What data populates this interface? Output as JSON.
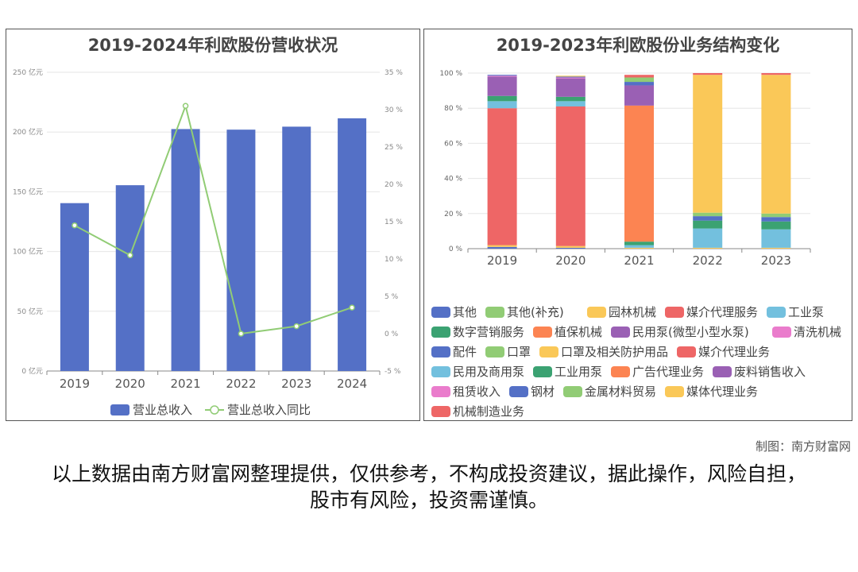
{
  "footer": {
    "source": "制图：南方财富网",
    "disclaimer": "以上数据由南方财富网整理提供，仅供参考，不构成投资建议，据此操作，风险自担，股市有风险，投资需谨慎。"
  },
  "chart_data": [
    {
      "type": "bar",
      "title": "2019-2024年利欧股份营收状况",
      "categories": [
        "2019",
        "2020",
        "2021",
        "2022",
        "2023",
        "2024"
      ],
      "y_ticks_left": [
        "0 亿元",
        "50 亿元",
        "100 亿元",
        "150 亿元",
        "200 亿元",
        "250 亿元"
      ],
      "y_ticks_right": [
        "-5 %",
        "0 %",
        "5 %",
        "10 %",
        "15 %",
        "20 %",
        "25 %",
        "30 %",
        "35 %"
      ],
      "ylim_left": [
        0,
        250
      ],
      "ylim_right": [
        -5,
        35
      ],
      "legend_position": "bottom",
      "grid": true,
      "series": [
        {
          "name": "营业总收入",
          "kind": "bar",
          "axis": "left",
          "color": "#5470c6",
          "values": [
            140.5,
            155.5,
            202.5,
            202.0,
            204.5,
            211.5
          ]
        },
        {
          "name": "营业总收入同比",
          "kind": "line",
          "axis": "right",
          "color": "#91cc75",
          "values": [
            14.5,
            10.5,
            30.5,
            0.0,
            1.0,
            3.5
          ]
        }
      ]
    },
    {
      "type": "bar",
      "stacked": true,
      "title": "2019-2023年利欧股份业务结构变化",
      "categories": [
        "2019",
        "2020",
        "2021",
        "2022",
        "2023"
      ],
      "y_ticks": [
        "0 %",
        "20 %",
        "40 %",
        "60 %",
        "80 %",
        "100 %"
      ],
      "ylim": [
        0,
        100
      ],
      "legend_position": "bottom",
      "grid": true,
      "series": [
        {
          "name": "其他",
          "color": "#5470c6",
          "values": [
            1.0,
            0.5,
            0,
            0,
            0
          ]
        },
        {
          "name": "其他(补充)",
          "color": "#91cc75",
          "values": [
            0,
            0,
            0,
            0,
            0
          ]
        },
        {
          "name": "园林机械",
          "color": "#fac858",
          "values": [
            1.0,
            1.0,
            0.5,
            0.5,
            0.5
          ]
        },
        {
          "name": "媒介代理服务",
          "color": "#ee6666",
          "values": [
            78.0,
            79.5,
            0,
            0,
            0
          ]
        },
        {
          "name": "工业泵",
          "color": "#73c0de",
          "values": [
            4.0,
            3.0,
            0,
            0,
            0
          ]
        },
        {
          "name": "数字营销服务",
          "color": "#3ba272",
          "values": [
            3.0,
            2.5,
            0,
            0,
            0
          ]
        },
        {
          "name": "植保机械",
          "color": "#fc8452",
          "values": [
            0,
            0,
            0,
            0,
            0
          ]
        },
        {
          "name": "民用泵(微型小型水泵)",
          "color": "#9a60b4",
          "values": [
            11.0,
            10.5,
            0,
            0,
            0
          ]
        },
        {
          "name": "清洗机械",
          "color": "#ea7ccc",
          "values": [
            0.5,
            0.5,
            0,
            0,
            0
          ]
        },
        {
          "name": "配件",
          "color": "#5470c6",
          "values": [
            0.5,
            0.5,
            0,
            0,
            0
          ]
        },
        {
          "name": "口罩",
          "color": "#91cc75",
          "values": [
            0,
            0,
            0,
            0,
            0
          ]
        },
        {
          "name": "口罩及相关防护用品",
          "color": "#fac858",
          "values": [
            0,
            0.5,
            0,
            0,
            0
          ]
        },
        {
          "name": "媒介代理业务",
          "color": "#ee6666",
          "values": [
            0,
            0,
            0,
            0,
            0
          ]
        },
        {
          "name": "民用及商用泵",
          "color": "#73c0de",
          "values": [
            0,
            0,
            1.5,
            11.0,
            10.5
          ]
        },
        {
          "name": "工业用泵",
          "color": "#3ba272",
          "values": [
            0,
            0,
            2.0,
            4.5,
            4.5
          ]
        },
        {
          "name": "广告代理业务",
          "color": "#fc8452",
          "values": [
            0,
            0,
            77.5,
            0,
            0
          ]
        },
        {
          "name": "废料销售收入",
          "color": "#9a60b4",
          "values": [
            0,
            0,
            11.5,
            0,
            0
          ]
        },
        {
          "name": "租赁收入",
          "color": "#ea7ccc",
          "values": [
            0,
            0,
            0,
            0,
            0
          ]
        },
        {
          "name": "钢材",
          "color": "#5470c6",
          "values": [
            0,
            0,
            2.0,
            2.5,
            2.5
          ]
        },
        {
          "name": "金属材料贸易",
          "color": "#91cc75",
          "values": [
            0,
            0,
            2.5,
            2.0,
            2.0
          ]
        },
        {
          "name": "媒体代理业务",
          "color": "#fac858",
          "values": [
            0,
            0,
            0,
            78.5,
            79.0
          ]
        },
        {
          "name": "机械制造业务",
          "color": "#ee6666",
          "values": [
            0,
            0,
            1.5,
            1.0,
            1.0
          ]
        }
      ]
    }
  ]
}
